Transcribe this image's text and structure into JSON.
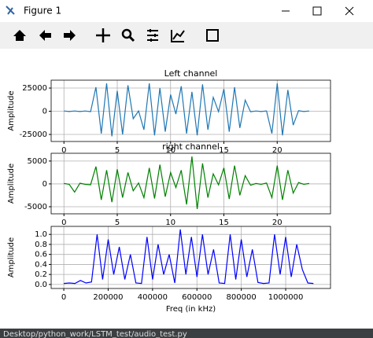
{
  "window": {
    "title": "Figure 1"
  },
  "footer": "Desktop/python_work/LSTM_test/audio_test.py",
  "chart_data": [
    {
      "type": "line",
      "title": "Left channel",
      "ylabel": "Amplitude",
      "x": [
        0,
        0.5,
        1,
        1.5,
        2,
        2.5,
        3,
        3.5,
        4,
        4.5,
        5,
        5.5,
        6,
        6.5,
        7,
        7.5,
        8,
        8.5,
        9,
        9.5,
        10,
        10.5,
        11,
        11.5,
        12,
        12.5,
        13,
        13.5,
        14,
        14.5,
        15,
        15.5,
        16,
        16.5,
        17,
        17.5,
        18,
        18.5,
        19,
        19.5,
        20,
        20.5,
        21,
        21.5,
        22,
        22.5,
        23
      ],
      "series": [
        {
          "color": "#1f77b4",
          "values": [
            300,
            -300,
            300,
            -300,
            300,
            -500,
            26000,
            -24000,
            30000,
            -27000,
            22000,
            -25000,
            28000,
            -8000,
            400,
            -20000,
            30000,
            -26000,
            25000,
            -22000,
            18000,
            -3000,
            27000,
            -24000,
            21000,
            -26000,
            29000,
            -20000,
            15000,
            -500,
            24000,
            -22000,
            26000,
            -18000,
            12000,
            -600,
            300,
            -300,
            400,
            -24000,
            30000,
            -26000,
            23000,
            -15000,
            600,
            -300,
            300
          ]
        }
      ],
      "xlim": [
        -1.2,
        25
      ],
      "ylim": [
        -32600,
        33500
      ],
      "xticks": [
        0,
        5,
        10,
        15,
        20
      ],
      "yticks": [
        -25000,
        0,
        25000
      ],
      "grid": true
    },
    {
      "type": "line",
      "title": "right channel",
      "ylabel": "Amplitude",
      "x": [
        0,
        0.5,
        1,
        1.5,
        2,
        2.5,
        3,
        3.5,
        4,
        4.5,
        5,
        5.5,
        6,
        6.5,
        7,
        7.5,
        8,
        8.5,
        9,
        9.5,
        10,
        10.5,
        11,
        11.5,
        12,
        12.5,
        13,
        13.5,
        14,
        14.5,
        15,
        15.5,
        16,
        16.5,
        17,
        17.5,
        18,
        18.5,
        19,
        19.5,
        20,
        20.5,
        21,
        21.5,
        22,
        22.5,
        23
      ],
      "series": [
        {
          "color": "#008000",
          "values": [
            100,
            -100,
            -1800,
            150,
            -100,
            -200,
            3800,
            -3500,
            3000,
            -4000,
            3200,
            -3000,
            2500,
            -1500,
            200,
            -3000,
            3500,
            -3200,
            4200,
            -2800,
            2500,
            -800,
            3000,
            -4500,
            6000,
            -5500,
            4500,
            -3000,
            2200,
            -200,
            3500,
            -3300,
            4000,
            -2500,
            1800,
            -300,
            100,
            -100,
            200,
            -3000,
            4000,
            -3500,
            3000,
            -2000,
            300,
            -100,
            100
          ]
        }
      ],
      "xlim": [
        -1.2,
        25
      ],
      "ylim": [
        -6550,
        6700
      ],
      "xticks": [
        0,
        5,
        10,
        15,
        20
      ],
      "yticks": [
        -5000,
        0,
        5000
      ],
      "grid": true
    },
    {
      "type": "line",
      "ylabel": "Amplitude",
      "xlabel": "Freq (in kHz)",
      "x": [
        0,
        25000,
        50000,
        75000,
        100000,
        125000,
        150000,
        175000,
        200000,
        225000,
        250000,
        275000,
        300000,
        325000,
        350000,
        375000,
        400000,
        425000,
        450000,
        475000,
        500000,
        525000,
        550000,
        575000,
        600000,
        625000,
        650000,
        675000,
        700000,
        725000,
        750000,
        775000,
        800000,
        825000,
        850000,
        875000,
        900000,
        925000,
        950000,
        975000,
        1000000,
        1025000,
        1050000,
        1075000,
        1100000,
        1125000
      ],
      "series": [
        {
          "color": "#0000ff",
          "values": [
            0.02,
            0.03,
            0.02,
            0.08,
            0.03,
            0.05,
            1.0,
            0.1,
            0.9,
            0.2,
            0.75,
            0.1,
            0.6,
            0.03,
            0.02,
            0.95,
            0.1,
            0.8,
            0.2,
            0.6,
            0.03,
            1.1,
            0.2,
            0.95,
            0.15,
            1.0,
            0.2,
            0.7,
            0.03,
            0.02,
            1.0,
            0.1,
            0.9,
            0.15,
            0.7,
            0.04,
            0.02,
            0.03,
            1.0,
            0.2,
            0.95,
            0.15,
            0.8,
            0.3,
            0.03,
            0.02
          ]
        }
      ],
      "xlim": [
        -57000,
        1202000
      ],
      "ylim": [
        -0.08,
        1.16
      ],
      "xticks": [
        0,
        200000,
        400000,
        600000,
        800000,
        1000000
      ],
      "yticks": [
        {
          "value": 0,
          "label": "0.0"
        },
        {
          "value": 0.2,
          "label": "0.2"
        },
        {
          "value": 0.4,
          "label": "0.4"
        },
        {
          "value": 0.6,
          "label": "0.6"
        },
        {
          "value": 0.8,
          "label": "0.8"
        },
        {
          "value": 1,
          "label": "1.0"
        }
      ],
      "grid": true
    }
  ]
}
